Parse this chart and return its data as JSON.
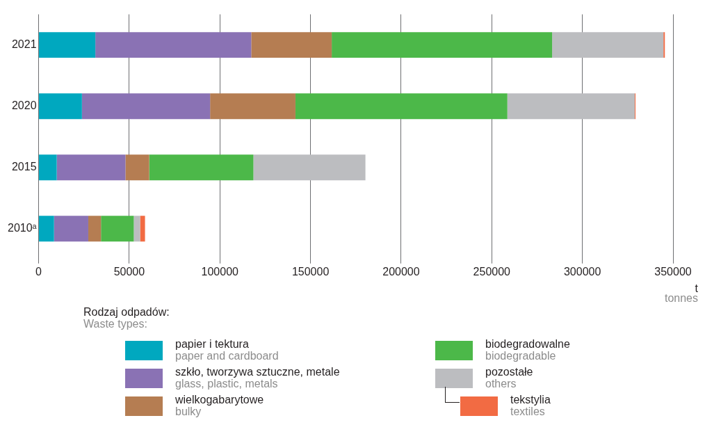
{
  "chart_data": {
    "type": "bar",
    "orientation": "horizontal",
    "stacked": true,
    "categories": [
      "2021",
      "2020",
      "2015",
      "2010ᵃ"
    ],
    "series": [
      {
        "name": "papier i tektura\npaper and cardboard",
        "color": "#00a8bf",
        "values": [
          31300,
          23900,
          10000,
          8500
        ]
      },
      {
        "name": "szkło, tworzywa sztuczne, metale\nglass, plastic, metals",
        "color": "#8a72b4",
        "values": [
          86000,
          70700,
          37900,
          18900
        ]
      },
      {
        "name": "wielkogabarytowe\nbulky",
        "color": "#b57d52",
        "values": [
          44400,
          47100,
          13100,
          7000
        ]
      },
      {
        "name": "biodegradowalne\nbiodegradable",
        "color": "#4cb849",
        "values": [
          121600,
          116900,
          57500,
          18100
        ]
      },
      {
        "name": "pozostałe\nothers",
        "color": "#bcbdc0",
        "values": [
          61400,
          70300,
          61800,
          3500
        ]
      },
      {
        "name": "tekstylia\ntextiles",
        "color": "#f26b43",
        "values": [
          800,
          400,
          null,
          2700
        ]
      }
    ],
    "xlim": [
      0,
      350000
    ],
    "xticks": [
      0,
      50000,
      100000,
      150000,
      200000,
      250000,
      300000,
      350000
    ],
    "xlabel": "t\ntonnes",
    "legend_title": "Rodzaj odpadów:\nWaste types:",
    "legend": "bottom",
    "grid": "x"
  }
}
